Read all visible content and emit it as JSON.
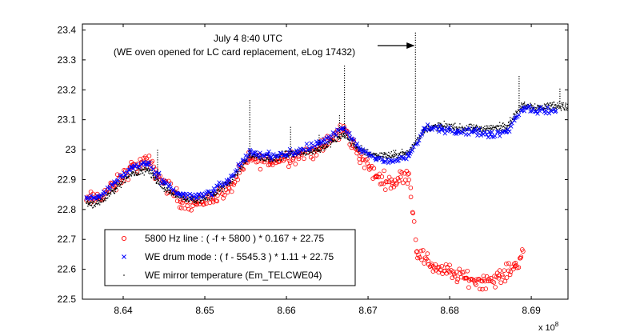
{
  "chart_data": {
    "type": "scatter",
    "title": "",
    "xlabel": "",
    "ylabel": "",
    "x_exponent_label": "x 10",
    "x_exponent": "8",
    "xlim": [
      8.635,
      8.6945
    ],
    "ylim": [
      22.5,
      23.42
    ],
    "x_ticks": [
      8.64,
      8.65,
      8.66,
      8.67,
      8.68,
      8.69
    ],
    "x_tick_labels": [
      "8.64",
      "8.65",
      "8.66",
      "8.67",
      "8.68",
      "8.69"
    ],
    "y_ticks": [
      22.5,
      22.6,
      22.7,
      22.8,
      22.9,
      23.0,
      23.1,
      23.2,
      23.3,
      23.4
    ],
    "y_tick_labels": [
      "22.5",
      "22.6",
      "22.7",
      "22.8",
      "22.9",
      "23",
      "23.1",
      "23.2",
      "23.3",
      "23.4"
    ],
    "grid": false,
    "legend_position": "bottom-left",
    "annotation": {
      "line1": "July 4 8:40 UTC",
      "line2": "(WE oven opened for LC card replacement, eLog 17432)",
      "arrow_target": [
        8.6758,
        23.38
      ]
    },
    "series": [
      {
        "name": "5800 Hz line : ( -f + 5800 ) * 0.167 + 22.75",
        "marker": "circle",
        "color": "#ff0000",
        "x": [
          8.6355,
          8.637,
          8.639,
          8.641,
          8.643,
          8.645,
          8.647,
          8.649,
          8.651,
          8.653,
          8.6555,
          8.658,
          8.661,
          8.664,
          8.667,
          8.669,
          8.671,
          8.673,
          8.675,
          8.676,
          8.678,
          8.68,
          8.682,
          8.684,
          8.686,
          8.688,
          8.689
        ],
        "y": [
          22.83,
          22.84,
          22.88,
          22.94,
          22.96,
          22.89,
          22.83,
          22.82,
          22.84,
          22.87,
          22.97,
          22.96,
          22.98,
          23.0,
          23.07,
          22.98,
          22.91,
          22.89,
          22.92,
          22.66,
          22.61,
          22.59,
          22.57,
          22.56,
          22.57,
          22.61,
          22.66
        ]
      },
      {
        "name": "WE drum mode : ( f - 5545.3 ) * 1.11 + 22.75",
        "marker": "x",
        "color": "#0000ff",
        "x": [
          8.6355,
          8.637,
          8.639,
          8.641,
          8.643,
          8.645,
          8.647,
          8.649,
          8.651,
          8.653,
          8.6555,
          8.658,
          8.661,
          8.664,
          8.667,
          8.669,
          8.671,
          8.673,
          8.675,
          8.677,
          8.679,
          8.681,
          8.683,
          8.685,
          8.687,
          8.689,
          8.691,
          8.693
        ],
        "y": [
          22.84,
          22.84,
          22.89,
          22.94,
          22.95,
          22.89,
          22.85,
          22.84,
          22.86,
          22.9,
          22.99,
          22.98,
          22.99,
          23.02,
          23.07,
          23.0,
          22.97,
          22.96,
          22.98,
          23.07,
          23.07,
          23.06,
          23.06,
          23.05,
          23.06,
          23.14,
          23.13,
          23.13
        ]
      },
      {
        "name": "WE mirror temperature (Em_TELCWE04)",
        "marker": "point",
        "color": "#000000",
        "x": [
          8.6355,
          8.637,
          8.639,
          8.641,
          8.643,
          8.645,
          8.647,
          8.649,
          8.651,
          8.653,
          8.6555,
          8.658,
          8.661,
          8.664,
          8.667,
          8.669,
          8.671,
          8.673,
          8.675,
          8.677,
          8.679,
          8.681,
          8.683,
          8.685,
          8.687,
          8.689,
          8.691,
          8.693,
          8.6945
        ],
        "y": [
          22.82,
          22.82,
          22.87,
          22.92,
          22.93,
          22.87,
          22.84,
          22.83,
          22.85,
          22.89,
          22.98,
          22.97,
          22.99,
          23.0,
          23.05,
          23.0,
          22.98,
          22.98,
          22.99,
          23.07,
          23.08,
          23.07,
          23.07,
          23.07,
          23.08,
          23.15,
          23.14,
          23.15,
          23.14
        ]
      }
    ]
  }
}
